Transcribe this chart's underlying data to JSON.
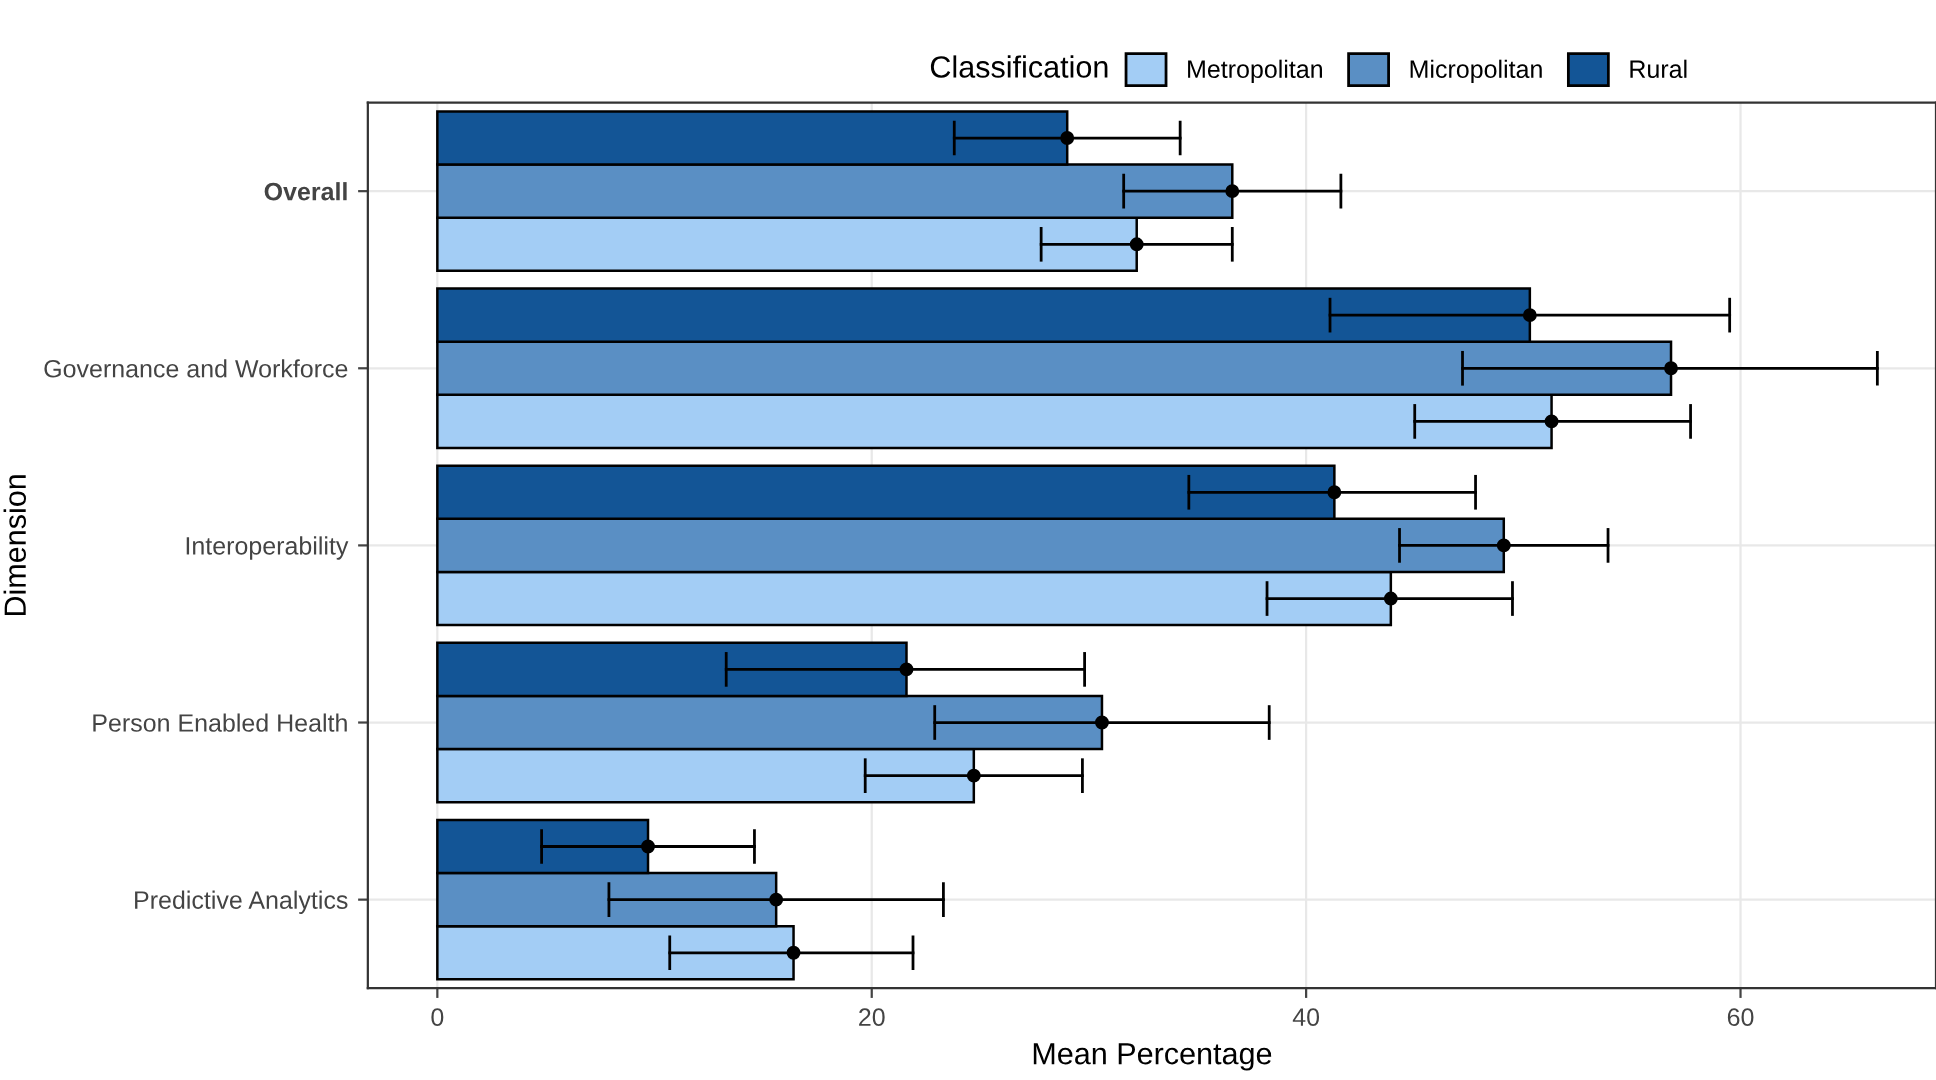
{
  "chart_data": {
    "type": "bar",
    "orientation": "horizontal",
    "xlabel": "Mean Percentage",
    "ylabel": "Dimension",
    "legend_title": "Classification",
    "legend": "top",
    "grid": true,
    "marker": "circle",
    "categories": [
      "Overall",
      "Governance and Workforce",
      "Interoperability",
      "Person Enabled Health",
      "Predictive Analytics"
    ],
    "xlim": [
      -3.2,
      69
    ],
    "xticks": [
      0,
      20,
      40,
      60
    ],
    "series": [
      {
        "name": "Metropolitan",
        "color": "#a3cdf5",
        "values": [
          32.2,
          51.3,
          43.9,
          24.7,
          16.4
        ],
        "errors": [
          [
            27.8,
            36.6
          ],
          [
            45.0,
            57.7
          ],
          [
            38.2,
            49.5
          ],
          [
            19.7,
            29.7
          ],
          [
            10.7,
            21.9
          ]
        ]
      },
      {
        "name": "Micropolitan",
        "color": "#5a8fc4",
        "values": [
          36.6,
          56.8,
          49.1,
          30.6,
          15.6
        ],
        "errors": [
          [
            31.6,
            41.6
          ],
          [
            47.2,
            66.3
          ],
          [
            44.3,
            53.9
          ],
          [
            22.9,
            38.3
          ],
          [
            7.9,
            23.3
          ]
        ]
      },
      {
        "name": "Rural",
        "color": "#135596",
        "values": [
          29.0,
          50.3,
          41.3,
          21.6,
          9.7
        ],
        "errors": [
          [
            23.8,
            34.2
          ],
          [
            41.1,
            59.5
          ],
          [
            34.6,
            47.8
          ],
          [
            13.3,
            29.8
          ],
          [
            4.8,
            14.6
          ]
        ]
      },
      {
        "type": "scatter",
        "color": "#000000",
        "values": [
          32.2,
          51.3,
          43.9,
          24.7,
          16.4
        ]
      },
      {
        "type": "scatter",
        "color": "#000000",
        "values": [
          36.6,
          56.8,
          49.1,
          30.6,
          15.6
        ]
      },
      {
        "type": "scatter",
        "color": "#000000",
        "values": [
          29.0,
          50.3,
          41.3,
          21.6,
          9.7
        ]
      }
    ]
  }
}
